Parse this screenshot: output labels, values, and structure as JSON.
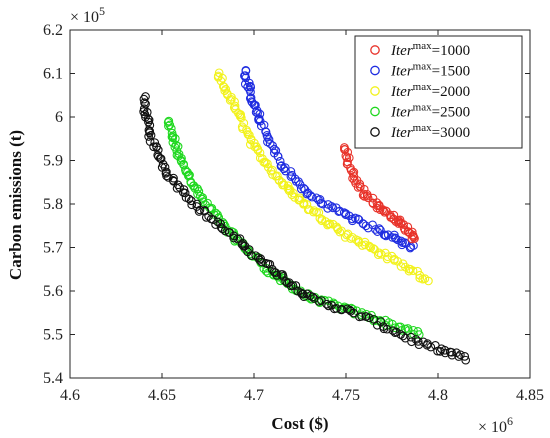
{
  "chart_data": {
    "type": "scatter",
    "xlabel": "Cost ($)",
    "ylabel": "Carbon emissions (t)",
    "x_multiplier": "× 10^6",
    "y_multiplier": "× 10^5",
    "xlim": [
      4.6,
      4.85
    ],
    "ylim": [
      5.4,
      6.2
    ],
    "x_ticks": [
      "4.6",
      "4.65",
      "4.7",
      "4.75",
      "4.8",
      "4.85"
    ],
    "y_ticks": [
      "5.4",
      "5.5",
      "5.6",
      "5.7",
      "5.8",
      "5.9",
      "6",
      "6.1",
      "6.2"
    ],
    "x_tick_values": [
      4.6,
      4.65,
      4.7,
      4.75,
      4.8,
      4.85
    ],
    "y_tick_values": [
      5.4,
      5.5,
      5.6,
      5.7,
      5.8,
      5.9,
      6.0,
      6.1,
      6.2
    ],
    "grid": false,
    "legend_position": "top-right",
    "marker": "open-circle",
    "series": [
      {
        "name": "Iter^max=1000",
        "name_base": "Iter",
        "name_sup": "max",
        "name_value": "=1000",
        "color": "#e8332a",
        "anchors": [
          [
            4.749,
            5.935
          ],
          [
            4.752,
            5.88
          ],
          [
            4.758,
            5.835
          ],
          [
            4.766,
            5.8
          ],
          [
            4.774,
            5.775
          ],
          [
            4.781,
            5.75
          ],
          [
            4.788,
            5.72
          ]
        ],
        "count": 70
      },
      {
        "name": "Iter^max=1500",
        "name_base": "Iter",
        "name_sup": "max",
        "name_value": "=1500",
        "color": "#1f2de0",
        "anchors": [
          [
            4.695,
            6.11
          ],
          [
            4.698,
            6.045
          ],
          [
            4.705,
            5.975
          ],
          [
            4.715,
            5.89
          ],
          [
            4.73,
            5.82
          ],
          [
            4.75,
            5.775
          ],
          [
            4.77,
            5.735
          ],
          [
            4.786,
            5.7
          ]
        ],
        "count": 110
      },
      {
        "name": "Iter^max=2000",
        "name_base": "Iter",
        "name_sup": "max",
        "name_value": "=2000",
        "color": "#f2f21c",
        "anchors": [
          [
            4.68,
            6.1
          ],
          [
            4.69,
            6.02
          ],
          [
            4.7,
            5.93
          ],
          [
            4.715,
            5.85
          ],
          [
            4.73,
            5.79
          ],
          [
            4.75,
            5.73
          ],
          [
            4.77,
            5.685
          ],
          [
            4.795,
            5.625
          ]
        ],
        "count": 130
      },
      {
        "name": "Iter^max=2500",
        "name_base": "Iter",
        "name_sup": "max",
        "name_value": "=2500",
        "color": "#1fd81f",
        "anchors": [
          [
            4.653,
            5.99
          ],
          [
            4.66,
            5.9
          ],
          [
            4.672,
            5.81
          ],
          [
            4.69,
            5.72
          ],
          [
            4.71,
            5.64
          ],
          [
            4.73,
            5.585
          ],
          [
            4.76,
            5.545
          ],
          [
            4.79,
            5.5
          ]
        ],
        "count": 150
      },
      {
        "name": "Iter^max=3000",
        "name_base": "Iter",
        "name_sup": "max",
        "name_value": "=3000",
        "color": "#111111",
        "anchors": [
          [
            4.64,
            6.045
          ],
          [
            4.643,
            5.96
          ],
          [
            4.653,
            5.87
          ],
          [
            4.67,
            5.79
          ],
          [
            4.69,
            5.72
          ],
          [
            4.71,
            5.65
          ],
          [
            4.73,
            5.585
          ],
          [
            4.76,
            5.54
          ],
          [
            4.79,
            5.48
          ],
          [
            4.815,
            5.445
          ]
        ],
        "count": 160
      }
    ]
  }
}
